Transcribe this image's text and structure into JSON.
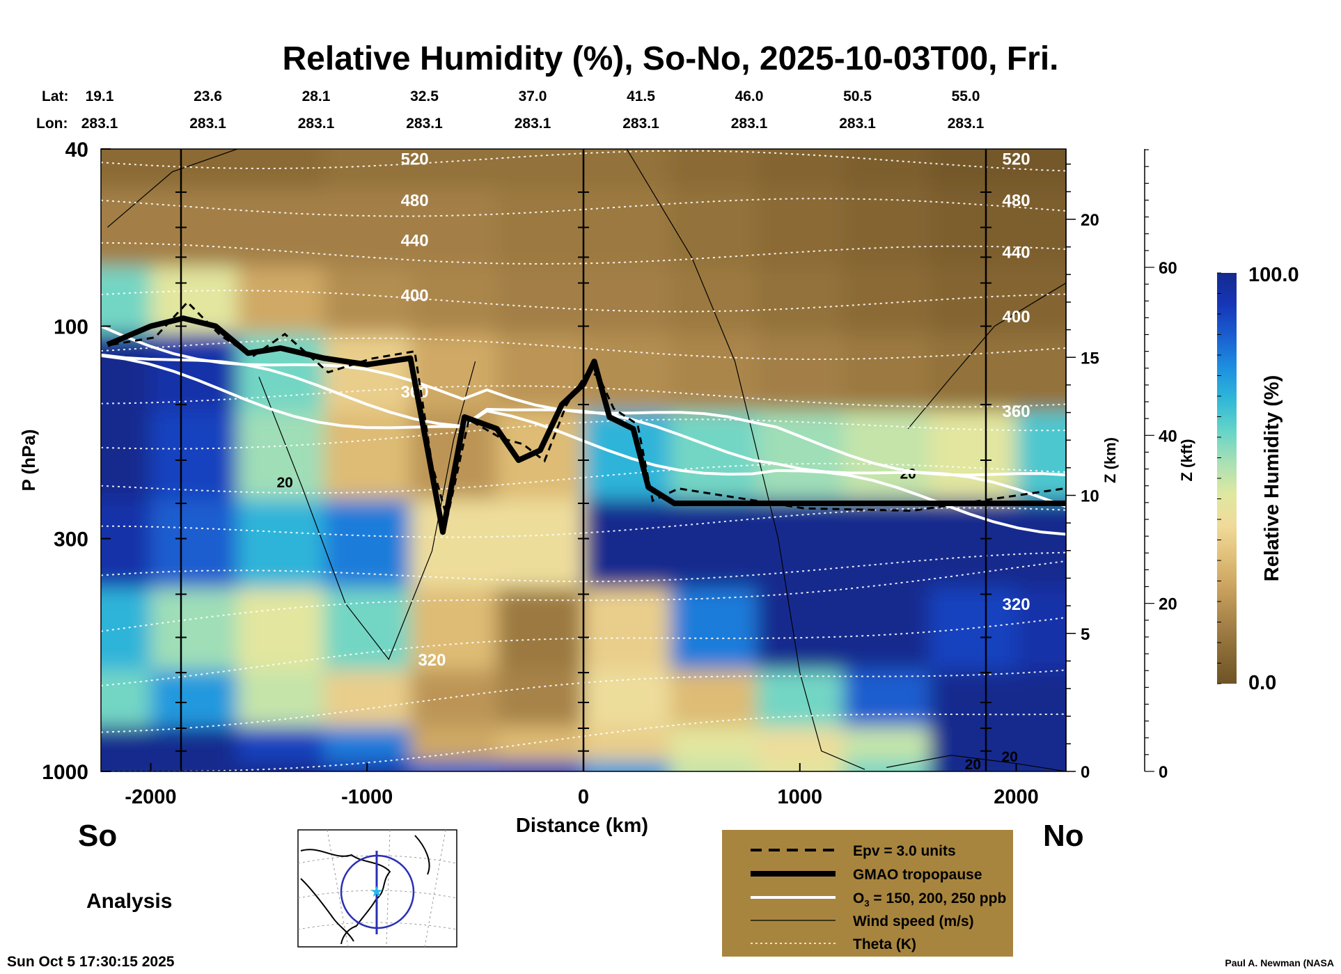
{
  "colors": {
    "rh_scale": [
      "#6e5326",
      "#8a6a35",
      "#a8844a",
      "#c9a15e",
      "#e0bf78",
      "#f0da9a",
      "#dfe8a0",
      "#a9e0b4",
      "#66d4c8",
      "#2fb8d8",
      "#1e8fe0",
      "#1a5fd0",
      "#1636b8",
      "#142a8e"
    ],
    "legend_box": "#a8853e"
  },
  "header": {
    "title": "Relative Humidity (%), So-No, 2025-10-03T00, Fri.",
    "lat_label": "Lat:",
    "lon_label": "Lon:"
  },
  "chart_data": {
    "type": "heatmap",
    "title": "Relative Humidity (%), So-No, 2025-10-03T00, Fri.",
    "xlabel": "Distance (km)",
    "ylabel": "P (hPa)",
    "xlim": [
      -2230,
      2230
    ],
    "ylim": [
      1000,
      40
    ],
    "y_scale": "log",
    "x_ticks": [
      -2000,
      -1000,
      0,
      1000,
      2000
    ],
    "x_tick_labels": [
      "-2000",
      "-1000",
      "0",
      "1000",
      "2000"
    ],
    "y_ticks": [
      40,
      100,
      300,
      1000
    ],
    "y_tick_labels": [
      "40",
      "100",
      "300",
      "1000"
    ],
    "lat_ticks": [
      {
        "x": -2000,
        "label": "19.1"
      },
      {
        "x": -1500,
        "label": "23.6"
      },
      {
        "x": -1000,
        "label": "28.1"
      },
      {
        "x": -500,
        "label": "32.5"
      },
      {
        "x": 0,
        "label": "37.0"
      },
      {
        "x": 500,
        "label": "41.5"
      },
      {
        "x": 1000,
        "label": "46.0"
      },
      {
        "x": 1500,
        "label": "50.5"
      },
      {
        "x": 2000,
        "label": "55.0"
      }
    ],
    "lon_ticks": [
      "283.1",
      "283.1",
      "283.1",
      "283.1",
      "283.1",
      "283.1",
      "283.1",
      "283.1",
      "283.1"
    ],
    "vertical_lines_km": [
      -1860,
      0,
      1860
    ],
    "z_km_axis": {
      "label": "Z (km)",
      "ticks": [
        0,
        5,
        10,
        15,
        20
      ]
    },
    "z_kft_axis": {
      "label": "Z (kft)",
      "ticks": [
        0,
        20,
        40,
        60
      ]
    },
    "theta_levels": [
      {
        "value": 520,
        "label": "520",
        "p_left": 42,
        "p_right": 42
      },
      {
        "value": 480,
        "label": "480",
        "p_left": 52,
        "p_right": 52
      },
      {
        "value": 440,
        "label": "440",
        "p_left": 64,
        "p_right": 68
      },
      {
        "value": 400,
        "label": "400",
        "p_left": 85,
        "p_right": 95
      },
      {
        "value": 360,
        "label": "360",
        "p_left": 140,
        "p_right": 155
      },
      {
        "value": 320,
        "label": "320",
        "p_left": 560,
        "p_right": 400
      }
    ],
    "theta_unlabeled_lines": 14,
    "tropopause_hpa": [
      [
        -2200,
        110
      ],
      [
        -2000,
        100
      ],
      [
        -1850,
        96
      ],
      [
        -1700,
        100
      ],
      [
        -1550,
        115
      ],
      [
        -1400,
        112
      ],
      [
        -1200,
        118
      ],
      [
        -1000,
        122
      ],
      [
        -800,
        118
      ],
      [
        -720,
        190
      ],
      [
        -650,
        290
      ],
      [
        -550,
        160
      ],
      [
        -400,
        170
      ],
      [
        -300,
        200
      ],
      [
        -200,
        190
      ],
      [
        -100,
        150
      ],
      [
        0,
        135
      ],
      [
        50,
        120
      ],
      [
        120,
        160
      ],
      [
        230,
        170
      ],
      [
        300,
        230
      ],
      [
        420,
        250
      ],
      [
        1000,
        250
      ],
      [
        1500,
        250
      ],
      [
        2230,
        250
      ]
    ],
    "o3_contours_ppb": [
      "150",
      "200",
      "250"
    ],
    "wind_speed_labels": [
      "20",
      "20",
      "20",
      "20"
    ],
    "heatmap_grid": {
      "x_km": [
        -2200,
        -1800,
        -1400,
        -1000,
        -600,
        -200,
        200,
        600,
        1000,
        1400,
        1800,
        2200
      ],
      "p_hpa": [
        40,
        60,
        90,
        120,
        200,
        300,
        500,
        700,
        900,
        1000
      ],
      "rh_pct": [
        [
          8,
          8,
          8,
          10,
          10,
          10,
          10,
          8,
          6,
          4,
          2,
          2
        ],
        [
          14,
          14,
          14,
          14,
          14,
          12,
          12,
          10,
          8,
          6,
          4,
          4
        ],
        [
          60,
          45,
          25,
          18,
          16,
          14,
          14,
          12,
          10,
          8,
          6,
          6
        ],
        [
          100,
          95,
          60,
          35,
          25,
          20,
          18,
          16,
          14,
          12,
          10,
          10
        ],
        [
          100,
          90,
          55,
          30,
          20,
          30,
          70,
          60,
          55,
          50,
          45,
          65
        ],
        [
          95,
          85,
          70,
          80,
          40,
          40,
          100,
          100,
          100,
          100,
          100,
          100
        ],
        [
          70,
          55,
          45,
          60,
          30,
          12,
          35,
          80,
          100,
          100,
          90,
          95
        ],
        [
          60,
          75,
          50,
          35,
          20,
          15,
          40,
          30,
          60,
          85,
          100,
          100
        ],
        [
          100,
          100,
          90,
          80,
          25,
          30,
          35,
          45,
          40,
          50,
          100,
          100
        ],
        [
          100,
          100,
          100,
          95,
          85,
          90,
          75,
          50,
          45,
          60,
          100,
          100
        ]
      ]
    }
  },
  "colorbar": {
    "label": "Relative Humidity (%)",
    "max_label": "100.0",
    "min_label": "0.0",
    "min": 0,
    "max": 100
  },
  "footer": {
    "south_label": "So",
    "north_label": "No",
    "analysis_label": "Analysis",
    "timestamp": "Sun Oct  5 17:30:15 2025",
    "credit": "Paul A. Newman (NASA"
  },
  "legend": {
    "epv": "Epv = 3.0 units",
    "tropopause": "GMAO tropopause",
    "o3_prefix": "O",
    "o3_sub": "3",
    "o3_suffix": " = 150, 200, 250 ppb",
    "wind": "Wind speed (m/s)",
    "theta": "Theta (K)"
  }
}
